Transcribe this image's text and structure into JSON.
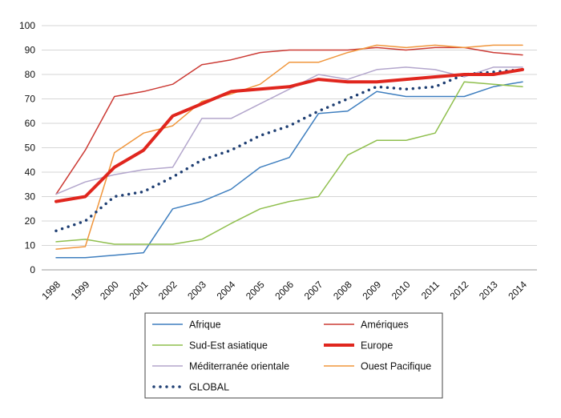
{
  "chart_data": {
    "type": "line",
    "title": "",
    "xlabel": "",
    "ylabel": "",
    "ylim": [
      0,
      100
    ],
    "yticks": [
      0,
      10,
      20,
      30,
      40,
      50,
      60,
      70,
      80,
      90,
      100
    ],
    "grid": "horizontal",
    "legend_position": "bottom",
    "x": [
      "1998",
      "1999",
      "2000",
      "2001",
      "2002",
      "2003",
      "2004",
      "2005",
      "2006",
      "2007",
      "2008",
      "2009",
      "2010",
      "2011",
      "2012",
      "2013",
      "2014"
    ],
    "series": [
      {
        "name": "Afrique",
        "color": "#3f7fbf",
        "width": 1.5,
        "style": "solid",
        "values": [
          5,
          5,
          6,
          7,
          25,
          28,
          33,
          42,
          46,
          64,
          65,
          73,
          71,
          71,
          71,
          75,
          77
        ]
      },
      {
        "name": "Amériques",
        "color": "#cc3b35",
        "width": 1.5,
        "style": "solid",
        "values": [
          31,
          49,
          71,
          73,
          76,
          84,
          86,
          89,
          90,
          90,
          90,
          91,
          90,
          91,
          91,
          89,
          88
        ]
      },
      {
        "name": "Sud-Est asiatique",
        "color": "#8fbf4d",
        "width": 1.5,
        "style": "solid",
        "values": [
          11.5,
          12.5,
          10.5,
          10.5,
          10.5,
          12.5,
          19,
          25,
          28,
          30,
          47,
          53,
          53,
          56,
          77,
          76,
          75
        ]
      },
      {
        "name": "Europe",
        "color": "#e0261e",
        "width": 4,
        "style": "solid",
        "values": [
          28,
          30,
          42,
          49,
          63,
          68,
          73,
          74,
          75,
          78,
          77,
          77,
          78,
          79,
          80,
          80,
          82
        ]
      },
      {
        "name": "Méditerranée orientale",
        "color": "#b3a6cc",
        "width": 1.5,
        "style": "solid",
        "values": [
          31,
          36,
          39,
          41,
          42,
          62,
          62,
          68,
          74,
          80,
          78,
          82,
          83,
          82,
          79,
          83,
          83
        ]
      },
      {
        "name": "Ouest Pacifique",
        "color": "#f0963c",
        "width": 1.5,
        "style": "solid",
        "values": [
          8.5,
          9.5,
          48,
          56,
          59,
          69,
          72,
          76,
          85,
          85,
          89,
          92,
          91,
          92,
          91,
          92,
          92
        ]
      },
      {
        "name": "GLOBAL",
        "color": "#1f3f73",
        "width": 3.5,
        "style": "dotted",
        "values": [
          16,
          20,
          30,
          32,
          38,
          45,
          49,
          55,
          59,
          65,
          70,
          75,
          74,
          75,
          80,
          81,
          82
        ]
      }
    ]
  }
}
